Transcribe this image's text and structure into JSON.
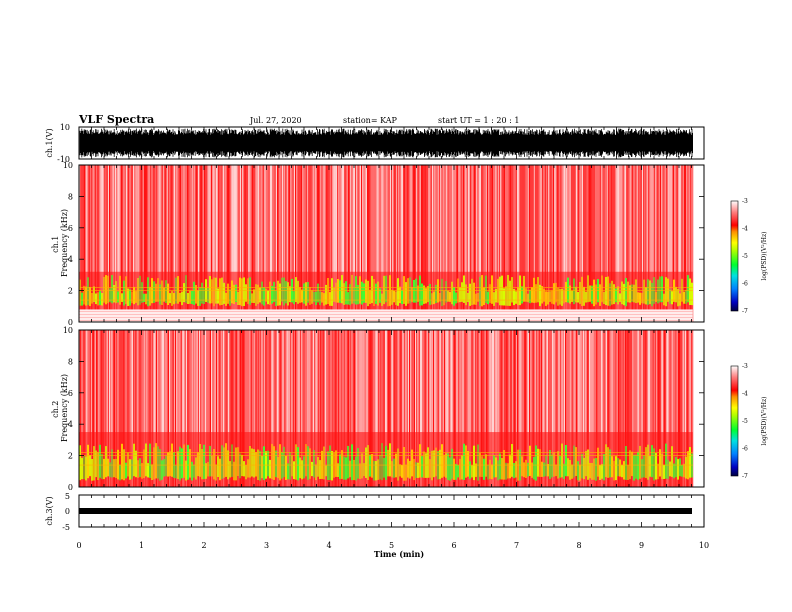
{
  "header": {
    "title": "VLF Spectra",
    "date": "Jul. 27, 2020",
    "station": "station= KAP",
    "start": "start UT =  1 : 20 : 1"
  },
  "chart_data": [
    {
      "type": "line",
      "panel": "ch1-waveform",
      "ylabel": "ch.1(V)",
      "ylim": [
        -10,
        10
      ],
      "yticks": [
        "10",
        "-10"
      ],
      "xlim": [
        0,
        9.82
      ],
      "note": "dense noise waveform filling roughly -9 to +9 V"
    },
    {
      "type": "heatmap",
      "panel": "ch1-spectrogram",
      "ylabel": "ch.1\nFrequency (kHz)",
      "ylim": [
        0,
        10
      ],
      "yticks": [
        "0",
        "2",
        "4",
        "6",
        "8",
        "10"
      ],
      "xlim": [
        0,
        9.82
      ],
      "colorbar": {
        "label": "log(PSD)(V²/Hz)",
        "range": [
          -7,
          -3
        ],
        "ticks": [
          "-3",
          "-4",
          "-5",
          "-6",
          "-7"
        ],
        "colors": [
          "#000080",
          "#0050ff",
          "#00c8ff",
          "#00ff40",
          "#a0ff00",
          "#ffff00",
          "#ff8000",
          "#ff0000",
          "#ff6060",
          "#ffd0d0"
        ]
      },
      "bands": {
        "high_level_below_kHz": 3.2,
        "green_yellow_band_kHz": [
          1.0,
          3.0
        ],
        "gap_kHz": [
          0,
          0.8
        ]
      }
    },
    {
      "type": "heatmap",
      "panel": "ch2-spectrogram",
      "ylabel": "ch.2\nFrequency (kHz)",
      "ylim": [
        0,
        10
      ],
      "yticks": [
        "0",
        "2",
        "4",
        "6",
        "8",
        "10"
      ],
      "xlim": [
        0,
        9.82
      ],
      "colorbar": {
        "label": "log(PSD)(V²/Hz)",
        "range": [
          -7,
          -3
        ],
        "ticks": [
          "-3",
          "-4",
          "-5",
          "-6",
          "-7"
        ]
      },
      "bands": {
        "high_level_below_kHz": 3.5,
        "green_yellow_band_kHz": [
          0.4,
          2.8
        ]
      }
    },
    {
      "type": "line",
      "panel": "ch3-waveform",
      "ylabel": "ch.3(V)",
      "ylim": [
        -5,
        5
      ],
      "yticks": [
        "5",
        "0",
        "-5"
      ],
      "xlim": [
        0,
        9.82
      ],
      "note": "nearly flat dense trace near 0 V"
    }
  ],
  "x_axis": {
    "label": "Time (min)",
    "range": [
      0,
      10
    ],
    "ticks": [
      "0",
      "1",
      "2",
      "3",
      "4",
      "5",
      "6",
      "7",
      "8",
      "9",
      "10"
    ]
  }
}
